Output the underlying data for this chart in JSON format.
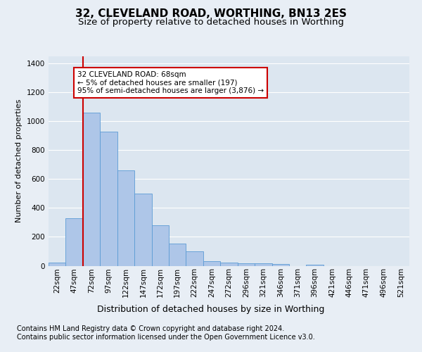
{
  "title": "32, CLEVELAND ROAD, WORTHING, BN13 2ES",
  "subtitle": "Size of property relative to detached houses in Worthing",
  "xlabel": "Distribution of detached houses by size in Worthing",
  "ylabel": "Number of detached properties",
  "bar_labels": [
    "22sqm",
    "47sqm",
    "72sqm",
    "97sqm",
    "122sqm",
    "147sqm",
    "172sqm",
    "197sqm",
    "222sqm",
    "247sqm",
    "272sqm",
    "296sqm",
    "321sqm",
    "346sqm",
    "371sqm",
    "396sqm",
    "421sqm",
    "446sqm",
    "471sqm",
    "496sqm",
    "521sqm"
  ],
  "bar_values": [
    20,
    330,
    1060,
    930,
    660,
    500,
    280,
    155,
    100,
    30,
    20,
    18,
    15,
    10,
    0,
    8,
    0,
    0,
    0,
    0,
    0
  ],
  "bar_color": "#aec6e8",
  "bar_edge_color": "#5b9bd5",
  "highlight_line_color": "#cc0000",
  "annotation_box_text": "32 CLEVELAND ROAD: 68sqm\n← 5% of detached houses are smaller (197)\n95% of semi-detached houses are larger (3,876) →",
  "annotation_box_color": "#cc0000",
  "ylim": [
    0,
    1450
  ],
  "yticks": [
    0,
    200,
    400,
    600,
    800,
    1000,
    1200,
    1400
  ],
  "bg_color": "#e8eef5",
  "plot_bg_color": "#dce6f0",
  "grid_color": "#ffffff",
  "footer_line1": "Contains HM Land Registry data © Crown copyright and database right 2024.",
  "footer_line2": "Contains public sector information licensed under the Open Government Licence v3.0.",
  "title_fontsize": 11,
  "subtitle_fontsize": 9.5,
  "xlabel_fontsize": 9,
  "ylabel_fontsize": 8,
  "tick_fontsize": 7.5,
  "annotation_fontsize": 7.5,
  "footer_fontsize": 7
}
